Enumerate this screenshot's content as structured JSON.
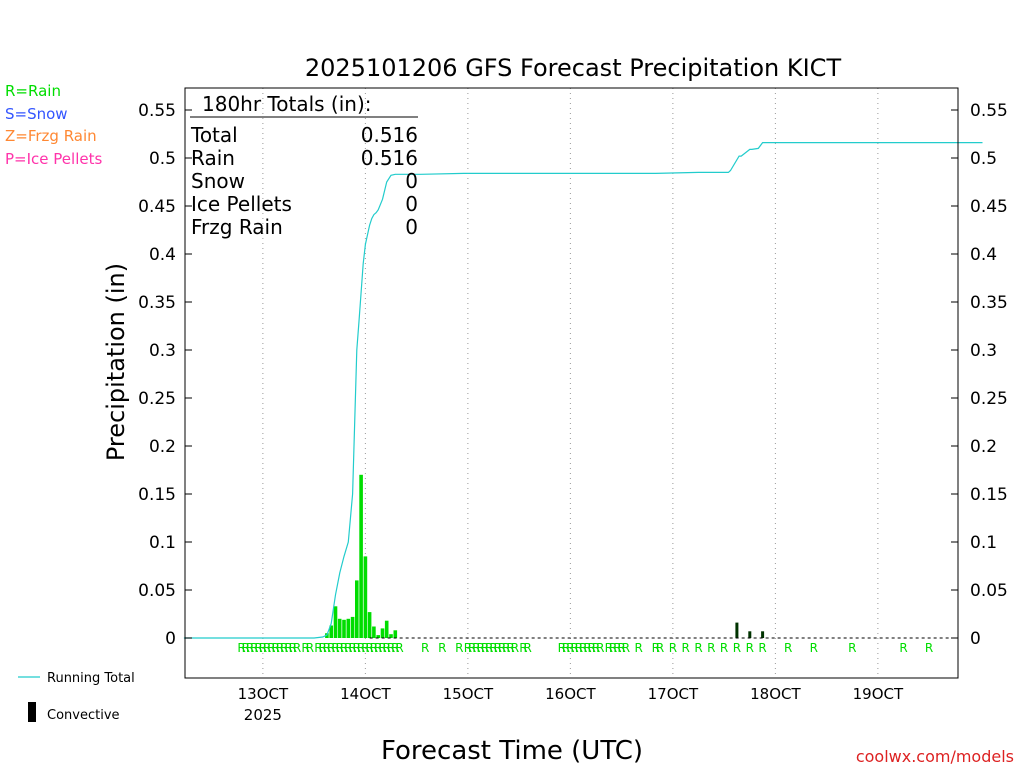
{
  "chart_data": {
    "type": "bar",
    "title": "2025101206 GFS Forecast Precipitation KICT",
    "xlabel": "Forecast Time (UTC)",
    "ylabel": "Precipitation (in)",
    "ylim": [
      -0.04,
      0.57
    ],
    "xlim_hours": [
      -0.5,
      186.5
    ],
    "yticks": [
      0,
      0.05,
      0.1,
      0.15,
      0.2,
      0.25,
      0.3,
      0.35,
      0.4,
      0.45,
      0.5,
      0.55
    ],
    "ytick_labels": [
      "0",
      "0.05",
      "0.1",
      "0.15",
      "0.2",
      "0.25",
      "0.3",
      "0.35",
      "0.4",
      "0.45",
      "0.5",
      "0.55"
    ],
    "xticks": [
      {
        "hour": 18,
        "label": "13OCT",
        "sublabel": "2025"
      },
      {
        "hour": 42,
        "label": "14OCT",
        "sublabel": ""
      },
      {
        "hour": 66,
        "label": "15OCT",
        "sublabel": ""
      },
      {
        "hour": 90,
        "label": "16OCT",
        "sublabel": ""
      },
      {
        "hour": 114,
        "label": "17OCT",
        "sublabel": ""
      },
      {
        "hour": 138,
        "label": "18OCT",
        "sublabel": ""
      },
      {
        "hour": 162,
        "label": "19OCT",
        "sublabel": ""
      }
    ],
    "legend": {
      "precip_types": [
        {
          "text": "R=Rain",
          "color": "#00dd00"
        },
        {
          "text": "S=Snow",
          "color": "#3355ff"
        },
        {
          "text": "Z=Frzg Rain",
          "color": "#ff8833"
        },
        {
          "text": "P=Ice Pellets",
          "color": "#ff33aa"
        }
      ],
      "running_total": "Running Total",
      "convective": "Convective"
    },
    "totals": {
      "header": "180hr Totals (in):",
      "rows": [
        {
          "label": "Total",
          "value": "0.516"
        },
        {
          "label": "Rain",
          "value": "0.516"
        },
        {
          "label": "Snow",
          "value": "0"
        },
        {
          "label": "Ice Pellets",
          "value": "0"
        },
        {
          "label": "Frzg Rain",
          "value": "0"
        }
      ]
    },
    "series": [
      {
        "name": "Rain",
        "color": "#00dd00",
        "x": [
          33,
          34,
          35,
          36,
          37,
          38,
          39,
          40,
          41,
          42,
          43,
          44,
          45,
          46,
          47,
          48,
          49
        ],
        "values": [
          0.005,
          0.013,
          0.033,
          0.02,
          0.019,
          0.02,
          0.022,
          0.06,
          0.17,
          0.085,
          0.027,
          0.012,
          0.003,
          0.01,
          0.018,
          0.004,
          0.008
        ]
      },
      {
        "name": "Convective",
        "color": "#003300",
        "x": [
          129,
          132,
          135
        ],
        "values": [
          0.016,
          0.007,
          0.007
        ]
      },
      {
        "name": "Running Total",
        "color": "#22cccc",
        "type": "line",
        "x": [
          -0.5,
          30,
          32,
          33,
          34,
          35,
          36,
          37,
          38,
          39,
          40,
          40.5,
          41,
          41.5,
          42,
          42.5,
          43,
          43.5,
          44,
          44.5,
          45,
          46,
          47,
          48,
          49,
          55,
          65,
          80,
          100,
          110,
          120,
          127,
          127.5,
          129.5,
          130,
          132,
          132.5,
          134,
          135,
          136,
          150,
          186.5
        ],
        "values": [
          0,
          0,
          0.001,
          0.003,
          0.015,
          0.045,
          0.068,
          0.085,
          0.1,
          0.15,
          0.3,
          0.33,
          0.36,
          0.39,
          0.41,
          0.42,
          0.43,
          0.437,
          0.441,
          0.443,
          0.446,
          0.457,
          0.475,
          0.482,
          0.483,
          0.483,
          0.484,
          0.484,
          0.484,
          0.484,
          0.485,
          0.485,
          0.487,
          0.502,
          0.502,
          0.509,
          0.509,
          0.51,
          0.516,
          0.516,
          0.516,
          0.516
        ]
      }
    ],
    "precip_type_markers": {
      "letter": "R",
      "color": "#00dd00",
      "hours": [
        13,
        14,
        15,
        16,
        17,
        18,
        19,
        20,
        21,
        22,
        23,
        24,
        25,
        26,
        28,
        29,
        31,
        32,
        33,
        34,
        35,
        36,
        37,
        38,
        39,
        40,
        41,
        42,
        43,
        44,
        45,
        46,
        47,
        48,
        49,
        50,
        56,
        60,
        64,
        66,
        67,
        68,
        69,
        70,
        71,
        72,
        73,
        74,
        75,
        76,
        77,
        79,
        80,
        88,
        89,
        90,
        91,
        92,
        93,
        94,
        95,
        96,
        97,
        99,
        100,
        101,
        102,
        103,
        106,
        110,
        111,
        114,
        117,
        120,
        123,
        126,
        129,
        132,
        135,
        141,
        147,
        156,
        168,
        174
      ]
    }
  },
  "credit": "coolwx.com/models"
}
